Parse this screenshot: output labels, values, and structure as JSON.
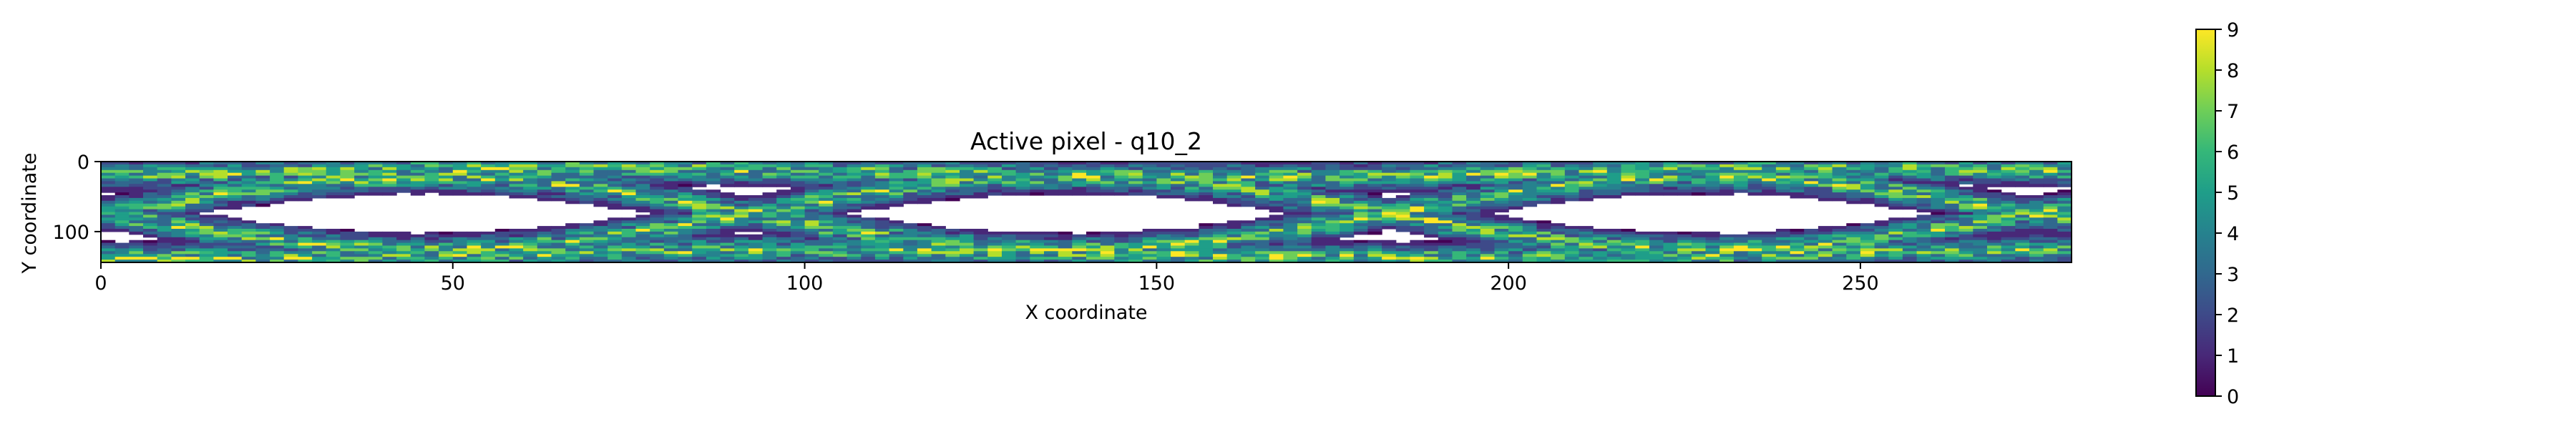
{
  "chart_data": {
    "type": "heatmap",
    "title": "Active pixel - q10_2",
    "xlabel": "X coordinate",
    "ylabel": "Y coordinate",
    "x_range": [
      0,
      280
    ],
    "y_range": [
      0,
      144
    ],
    "y_inverted": true,
    "x_ticks": [
      "0",
      "50",
      "100",
      "150",
      "200",
      "250"
    ],
    "x_tick_values": [
      0,
      50,
      100,
      150,
      200,
      250
    ],
    "y_ticks": [
      "0",
      "100"
    ],
    "y_tick_values": [
      0,
      100
    ],
    "colormap": "viridis",
    "colorbar": {
      "range": [
        0,
        9
      ],
      "ticks": [
        "0",
        "1",
        "2",
        "3",
        "4",
        "5",
        "6",
        "7",
        "8",
        "9"
      ],
      "tick_values": [
        0,
        1,
        2,
        3,
        4,
        5,
        6,
        7,
        8,
        9
      ]
    },
    "grid": false,
    "pattern": {
      "description_values": "four sinusoidal activity bands across the sensor",
      "period_x": 182,
      "bands": [
        {
          "center_y": 72,
          "amplitude": 52,
          "phase": 0.0
        },
        {
          "center_y": 72,
          "amplitude": 52,
          "phase": 3.14159
        },
        {
          "center_y": 130,
          "amplitude": 6,
          "phase": 1.2
        },
        {
          "center_y": 14,
          "amplitude": 6,
          "phase": 2.4
        }
      ],
      "min_value": 0,
      "max_value": 9
    }
  }
}
